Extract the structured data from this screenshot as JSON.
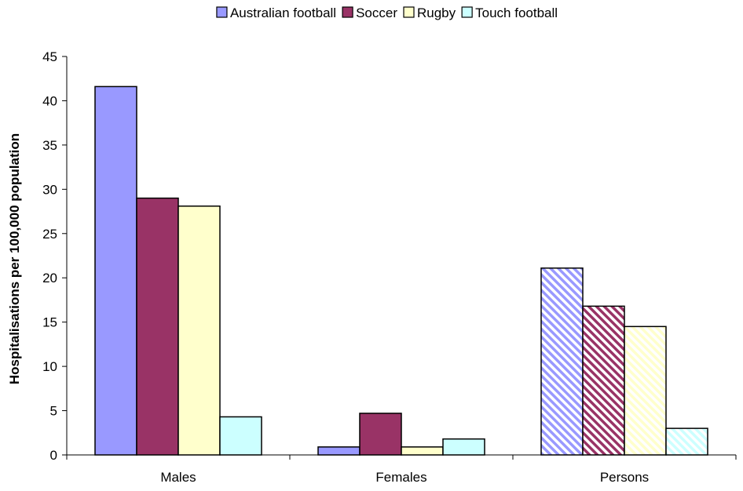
{
  "chart_data": {
    "type": "bar",
    "categories": [
      "Males",
      "Females",
      "Persons"
    ],
    "series": [
      {
        "name": "Australian football",
        "values": [
          41.6,
          0.9,
          21.1
        ],
        "color": "#9999ff"
      },
      {
        "name": "Soccer",
        "values": [
          29.0,
          4.7,
          16.8
        ],
        "color": "#993366"
      },
      {
        "name": "Rugby",
        "values": [
          28.1,
          0.9,
          14.5
        ],
        "color": "#ffffcc"
      },
      {
        "name": "Touch football",
        "values": [
          4.3,
          1.8,
          3.0
        ],
        "color": "#ccffff"
      }
    ],
    "hatched_categories": [
      "Persons"
    ],
    "xlabel": "",
    "ylabel": "Hospitalisations per 100,000 population",
    "ylim": [
      0,
      45
    ],
    "yticks": [
      0,
      5,
      10,
      15,
      20,
      25,
      30,
      35,
      40,
      45
    ],
    "grid": false,
    "legend_position": "top"
  }
}
